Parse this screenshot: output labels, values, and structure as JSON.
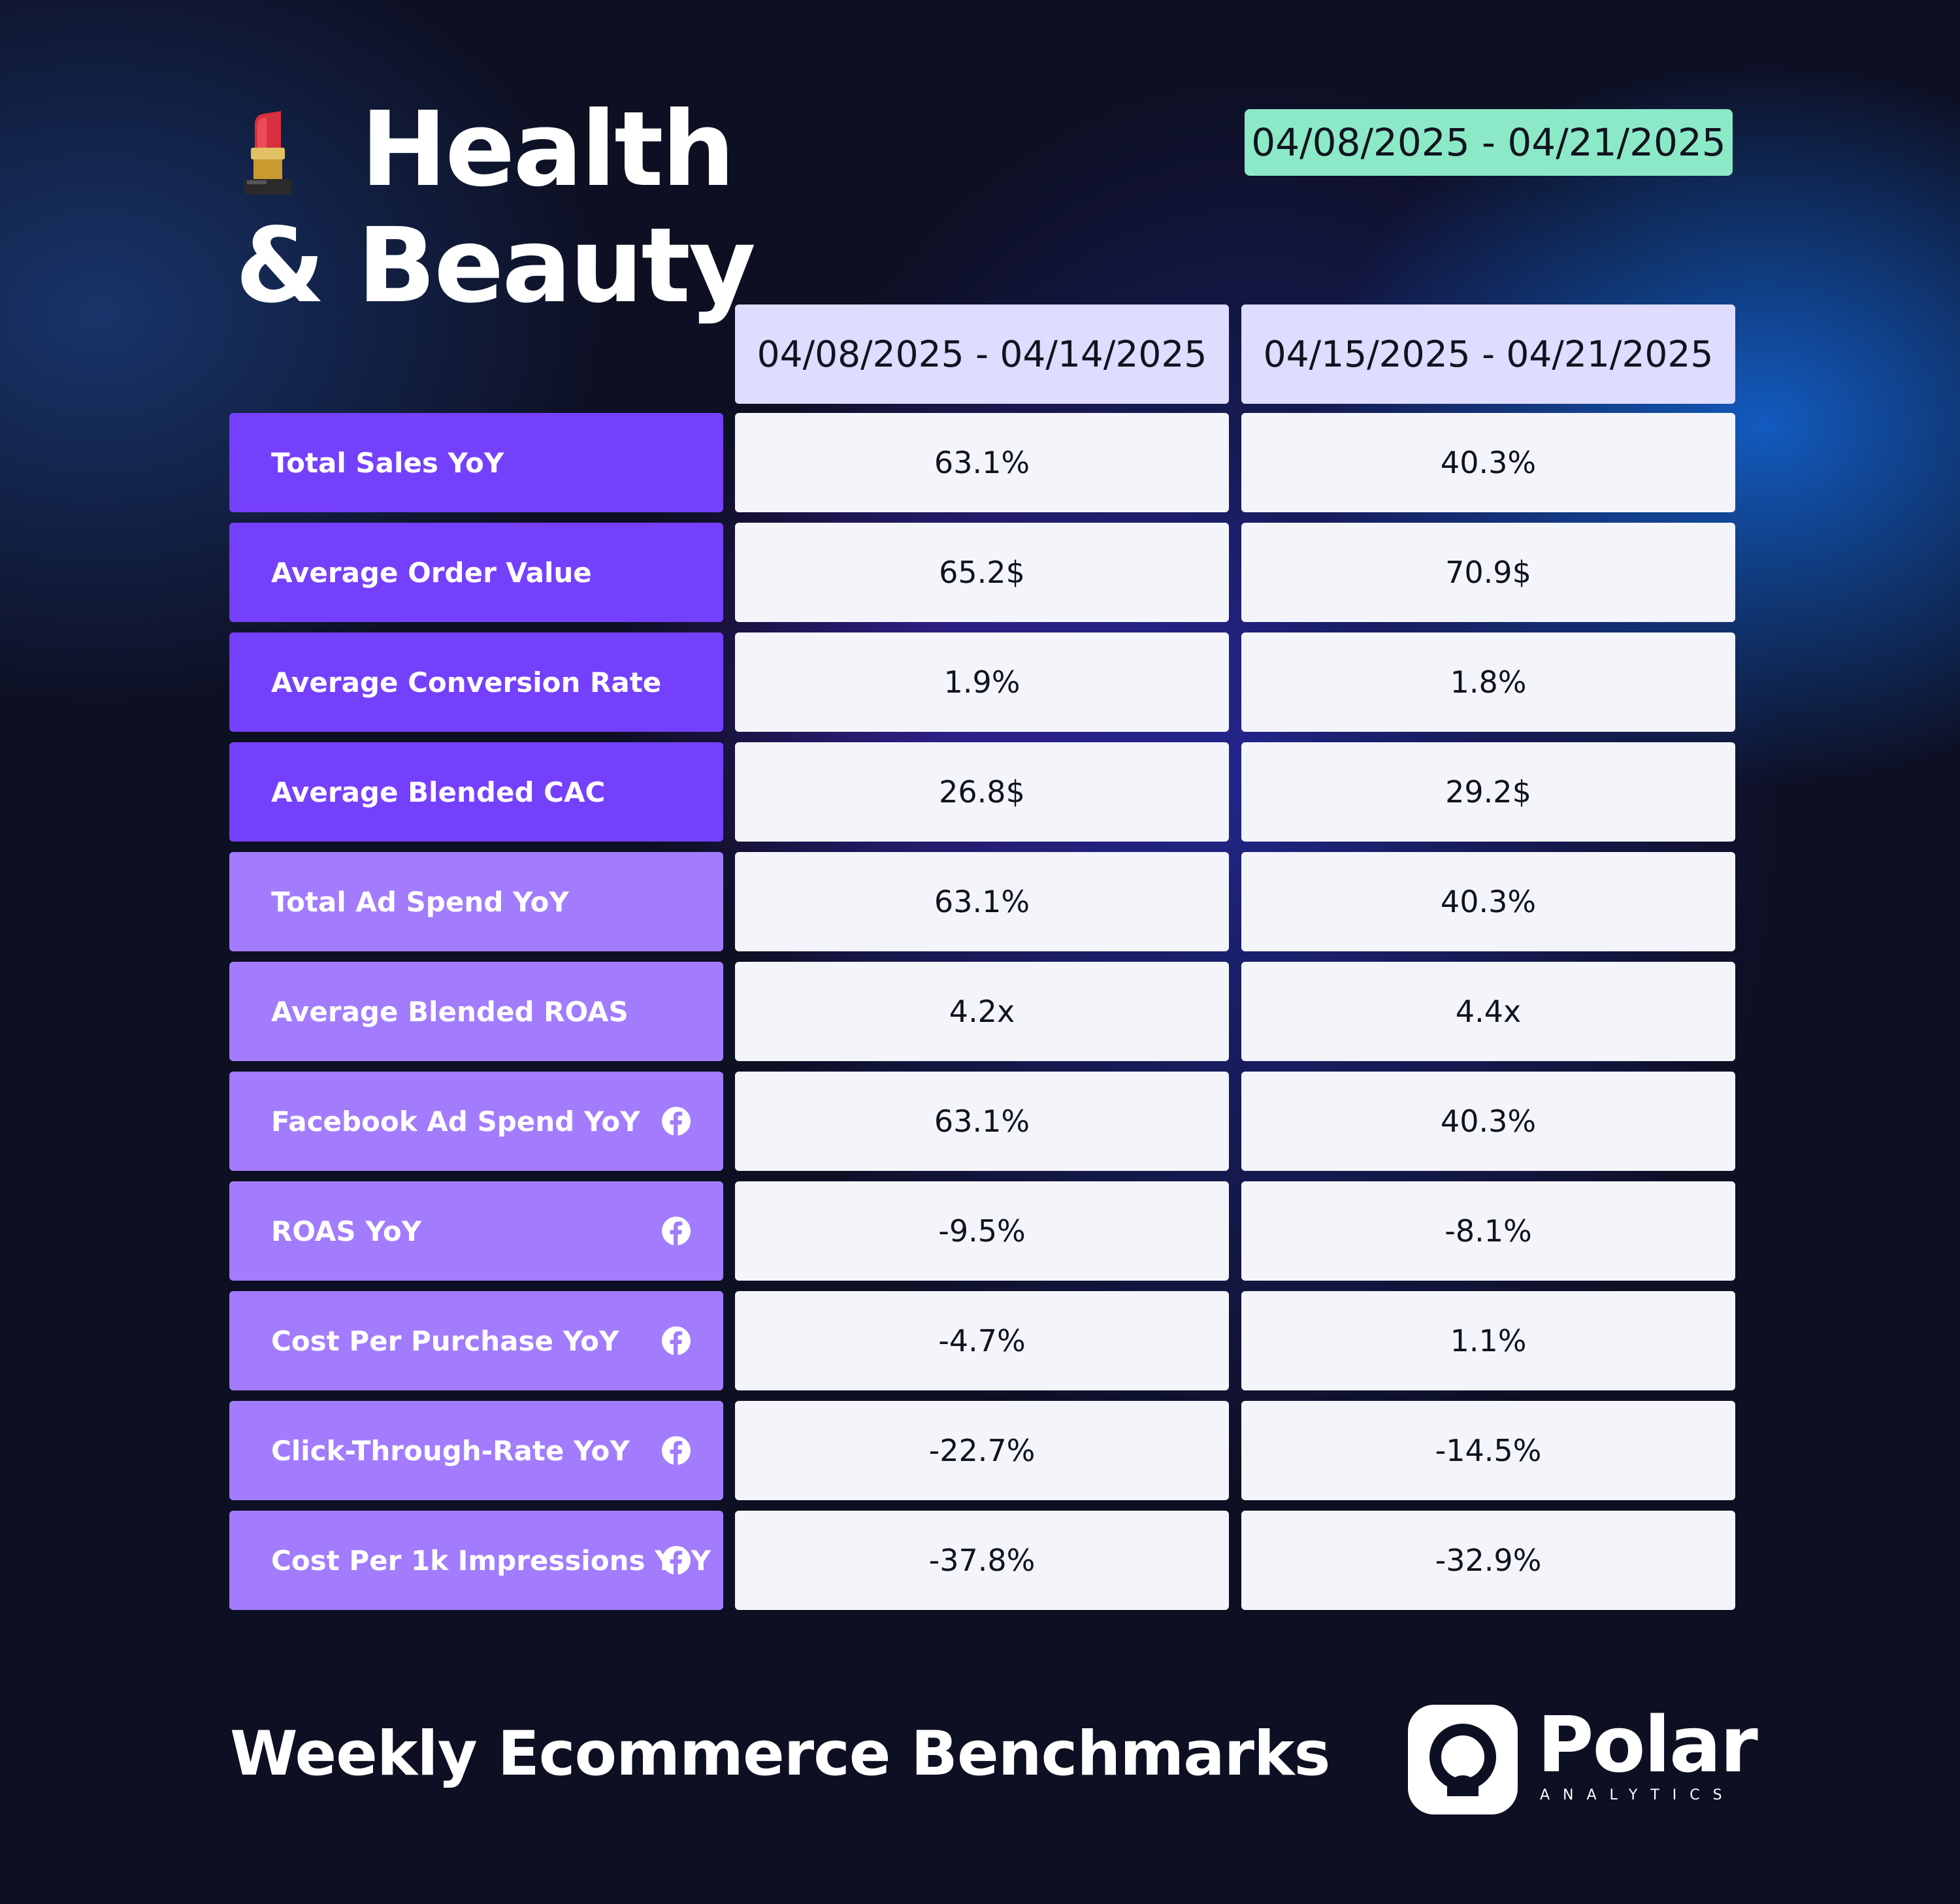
{
  "header": {
    "title": "Health & Beauty",
    "title_icon": "lipstick-icon",
    "date_range": "04/08/2025 - 04/21/2025"
  },
  "table": {
    "columns": [
      "04/08/2025 - 04/14/2025",
      "04/15/2025 - 04/21/2025"
    ],
    "rows": [
      {
        "label": "Total Sales YoY",
        "values": [
          "63.1%",
          "40.3%"
        ],
        "facebook": false
      },
      {
        "label": "Average Order Value",
        "values": [
          "65.2$",
          "70.9$"
        ],
        "facebook": false
      },
      {
        "label": "Average Conversion Rate",
        "values": [
          "1.9%",
          "1.8%"
        ],
        "facebook": false
      },
      {
        "label": "Average Blended CAC",
        "values": [
          "26.8$",
          "29.2$"
        ],
        "facebook": false
      },
      {
        "label": "Total Ad Spend YoY",
        "values": [
          "63.1%",
          "40.3%"
        ],
        "facebook": false
      },
      {
        "label": "Average Blended ROAS",
        "values": [
          "4.2x",
          "4.4x"
        ],
        "facebook": false
      },
      {
        "label": "Facebook Ad Spend YoY",
        "values": [
          "63.1%",
          "40.3%"
        ],
        "facebook": true
      },
      {
        "label": "ROAS YoY",
        "values": [
          "-9.5%",
          "-8.1%"
        ],
        "facebook": true
      },
      {
        "label": "Cost Per Purchase YoY",
        "values": [
          "-4.7%",
          "1.1%"
        ],
        "facebook": true
      },
      {
        "label": "Click-Through-Rate YoY",
        "values": [
          "-22.7%",
          "-14.5%"
        ],
        "facebook": true
      },
      {
        "label": "Cost Per 1k Impressions YoY",
        "values": [
          "-37.8%",
          "-32.9%"
        ],
        "facebook": true
      }
    ]
  },
  "chart_data": {
    "type": "table",
    "columns": [
      "04/08/2025 - 04/14/2025",
      "04/15/2025 - 04/21/2025"
    ],
    "rows": [
      {
        "metric": "Total Sales YoY",
        "values": [
          "63.1%",
          "40.3%"
        ]
      },
      {
        "metric": "Average Order Value",
        "values": [
          "65.2$",
          "70.9$"
        ]
      },
      {
        "metric": "Average Conversion Rate",
        "values": [
          "1.9%",
          "1.8%"
        ]
      },
      {
        "metric": "Average Blended CAC",
        "values": [
          "26.8$",
          "29.2$"
        ]
      },
      {
        "metric": "Total Ad Spend YoY",
        "values": [
          "63.1%",
          "40.3%"
        ]
      },
      {
        "metric": "Average Blended ROAS",
        "values": [
          "4.2x",
          "4.4x"
        ]
      },
      {
        "metric": "Facebook Ad Spend YoY",
        "values": [
          "63.1%",
          "40.3%"
        ]
      },
      {
        "metric": "ROAS YoY",
        "values": [
          "-9.5%",
          "-8.1%"
        ]
      },
      {
        "metric": "Cost Per Purchase YoY",
        "values": [
          "-4.7%",
          "1.1%"
        ]
      },
      {
        "metric": "Click-Through-Rate YoY",
        "values": [
          "-22.7%",
          "-14.5%"
        ]
      },
      {
        "metric": "Cost Per 1k Impressions YoY",
        "values": [
          "-37.8%",
          "-32.9%"
        ]
      }
    ]
  },
  "footer": {
    "title": "Weekly Ecommerce Benchmarks",
    "brand_name": "Polar",
    "brand_sub": "ANALYTICS"
  },
  "colors": {
    "background": "#0d0f22",
    "label_dark": "#7540fc",
    "label_light": "#a27cfc",
    "header_cell": "#dedcff",
    "value_cell": "#f4f5fb",
    "date_badge": "#8be9c7"
  }
}
